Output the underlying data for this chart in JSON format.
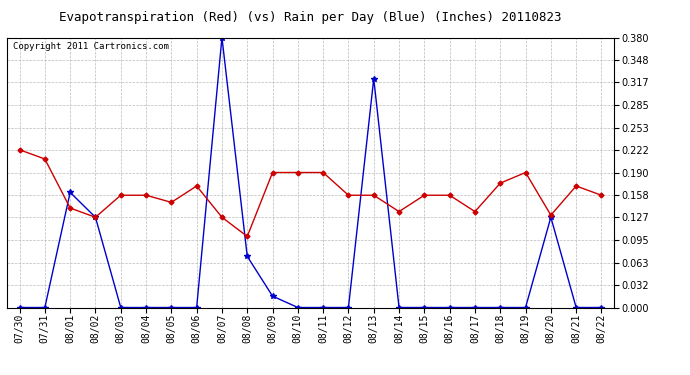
{
  "title": "Evapotranspiration (Red) (vs) Rain per Day (Blue) (Inches) 20110823",
  "copyright": "Copyright 2011 Cartronics.com",
  "x_labels": [
    "07/30",
    "07/31",
    "08/01",
    "08/02",
    "08/03",
    "08/04",
    "08/05",
    "08/06",
    "08/07",
    "08/08",
    "08/09",
    "08/10",
    "08/11",
    "08/12",
    "08/13",
    "08/14",
    "08/15",
    "08/16",
    "08/17",
    "08/18",
    "08/19",
    "08/20",
    "08/21",
    "08/22"
  ],
  "red_data": [
    0.222,
    0.209,
    0.14,
    0.127,
    0.158,
    0.158,
    0.148,
    0.171,
    0.127,
    0.1,
    0.19,
    0.19,
    0.19,
    0.158,
    0.158,
    0.135,
    0.158,
    0.158,
    0.135,
    0.175,
    0.19,
    0.13,
    0.171,
    0.158
  ],
  "blue_data": [
    0.0,
    0.0,
    0.162,
    0.127,
    0.0,
    0.0,
    0.0,
    0.0,
    0.38,
    0.072,
    0.016,
    0.0,
    0.0,
    0.0,
    0.322,
    0.0,
    0.0,
    0.0,
    0.0,
    0.0,
    0.0,
    0.127,
    0.0,
    0.0
  ],
  "yticks": [
    0.0,
    0.032,
    0.063,
    0.095,
    0.127,
    0.158,
    0.19,
    0.222,
    0.253,
    0.285,
    0.317,
    0.348,
    0.38
  ],
  "ylim": [
    0.0,
    0.38
  ],
  "background_color": "#ffffff",
  "plot_bg_color": "#ffffff",
  "grid_color": "#bbbbbb",
  "red_color": "#cc0000",
  "blue_color": "#0000cc",
  "title_fontsize": 9,
  "tick_fontsize": 7,
  "copyright_fontsize": 6.5
}
